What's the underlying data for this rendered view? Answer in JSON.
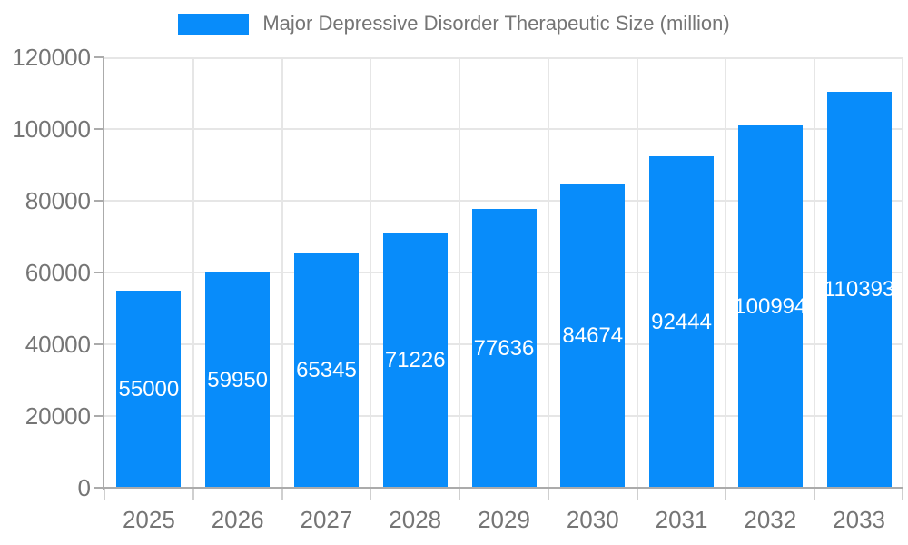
{
  "chart_data": {
    "type": "bar",
    "title": "Major Depressive Disorder Therapeutic Size (million)",
    "categories": [
      "2025",
      "2026",
      "2027",
      "2028",
      "2029",
      "2030",
      "2031",
      "2032",
      "2033"
    ],
    "values": [
      55000,
      59950,
      65345,
      71226,
      77636,
      84674,
      92444,
      100994,
      110393
    ],
    "xlabel": "",
    "ylabel": "",
    "ylim": [
      0,
      120000
    ],
    "ytick_step": 20000,
    "ytick_labels": [
      "0",
      "20000",
      "40000",
      "60000",
      "80000",
      "100000",
      "120000"
    ],
    "grid": true,
    "legend_position": "top",
    "value_labels_position": "inside-center",
    "colors": {
      "bar": "#088cfa",
      "value_label": "#ffffff",
      "axis_text": "#757575",
      "gridline": "#e6e6e6",
      "axis_line": "#ababab",
      "x_tick": "#cfcfcf",
      "background": "#ffffff"
    }
  }
}
